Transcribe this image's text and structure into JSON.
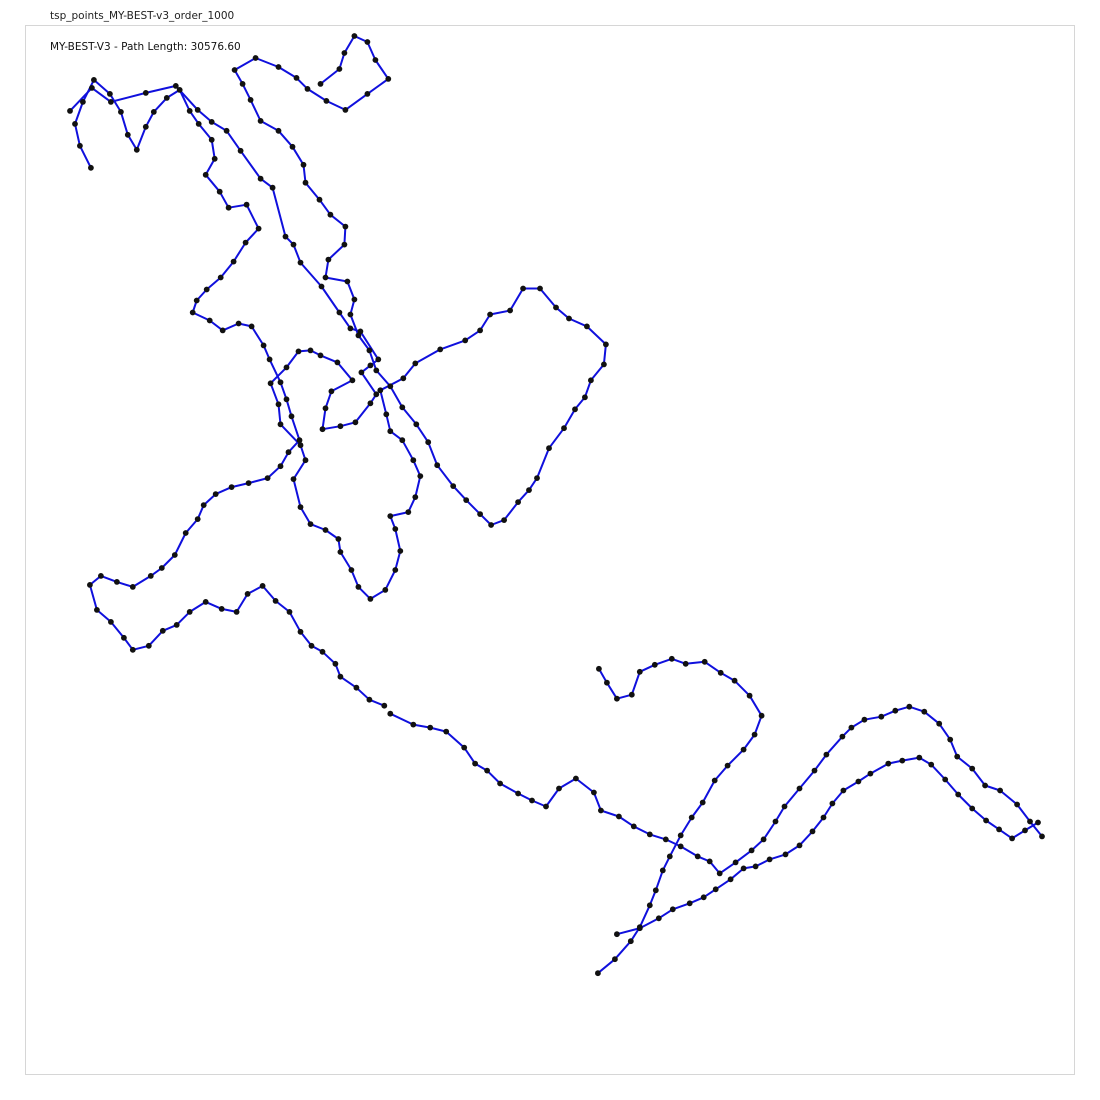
{
  "figure": {
    "title": "tsp_points_MY-BEST-v3_order_1000"
  },
  "chart_data": {
    "type": "line",
    "title": "MY-BEST-V3 - Path Length: 30576.60",
    "xlabel": "",
    "ylabel": "",
    "xlim": [
      0,
      100
    ],
    "ylim": [
      0,
      100
    ],
    "grid": false,
    "legend": "none",
    "colors": {
      "path": "#1010dd",
      "node": "#111111"
    },
    "series": [
      {
        "values": [
          [
            1.9,
            94.0
          ],
          [
            4.1,
            96.3
          ],
          [
            6.0,
            94.9
          ],
          [
            9.5,
            95.8
          ],
          [
            12.5,
            96.5
          ],
          [
            14.7,
            94.1
          ],
          [
            16.1,
            92.9
          ],
          [
            17.6,
            92.0
          ],
          [
            19.0,
            90.0
          ],
          [
            21.0,
            87.2
          ],
          [
            22.2,
            86.3
          ],
          [
            23.5,
            81.4
          ],
          [
            24.3,
            80.6
          ],
          [
            25.0,
            78.8
          ],
          [
            27.1,
            76.4
          ],
          [
            28.9,
            73.8
          ],
          [
            30.0,
            72.2
          ],
          [
            31.0,
            71.9
          ],
          [
            32.8,
            69.1
          ],
          [
            32.0,
            68.5
          ],
          [
            31.1,
            67.8
          ],
          [
            32.6,
            65.6
          ],
          [
            32.0,
            64.7
          ],
          [
            30.5,
            62.8
          ],
          [
            29.0,
            62.4
          ],
          [
            27.2,
            62.1
          ],
          [
            27.5,
            64.2
          ],
          [
            28.1,
            65.9
          ],
          [
            30.2,
            67.0
          ],
          [
            28.7,
            68.8
          ],
          [
            27.0,
            69.5
          ],
          [
            26.0,
            70.0
          ],
          [
            24.8,
            69.9
          ],
          [
            23.6,
            68.3
          ],
          [
            22.0,
            66.7
          ],
          [
            22.8,
            64.6
          ],
          [
            23.0,
            62.6
          ],
          [
            25.0,
            60.5
          ],
          [
            25.5,
            59.0
          ],
          [
            24.3,
            57.1
          ],
          [
            25.0,
            54.3
          ],
          [
            26.0,
            52.6
          ],
          [
            27.5,
            52.0
          ],
          [
            28.8,
            51.1
          ],
          [
            29.0,
            49.8
          ],
          [
            30.1,
            48.0
          ],
          [
            30.8,
            46.3
          ],
          [
            32.0,
            45.1
          ],
          [
            33.5,
            46.0
          ],
          [
            34.5,
            48.0
          ],
          [
            35.0,
            49.9
          ],
          [
            34.5,
            52.1
          ],
          [
            34.0,
            53.4
          ],
          [
            35.8,
            53.8
          ],
          [
            36.5,
            55.3
          ],
          [
            37.0,
            57.4
          ],
          [
            36.3,
            59.0
          ],
          [
            35.2,
            61.0
          ],
          [
            34.0,
            61.9
          ],
          [
            33.6,
            63.6
          ],
          [
            33.0,
            66.0
          ],
          [
            35.3,
            67.2
          ],
          [
            36.5,
            68.7
          ],
          [
            39.0,
            70.1
          ],
          [
            41.5,
            71.0
          ],
          [
            43.0,
            72.0
          ],
          [
            44.0,
            73.6
          ],
          [
            46.0,
            74.0
          ],
          [
            47.3,
            76.2
          ],
          [
            49.0,
            76.2
          ],
          [
            50.6,
            74.3
          ],
          [
            51.9,
            73.2
          ],
          [
            53.7,
            72.4
          ],
          [
            55.6,
            70.6
          ],
          [
            55.4,
            68.6
          ],
          [
            54.1,
            67.0
          ],
          [
            53.5,
            65.3
          ],
          [
            52.5,
            64.1
          ],
          [
            51.4,
            62.2
          ],
          [
            49.9,
            60.2
          ],
          [
            48.7,
            57.2
          ],
          [
            47.9,
            56.0
          ],
          [
            46.8,
            54.8
          ],
          [
            45.4,
            53.0
          ],
          [
            44.1,
            52.5
          ],
          [
            43.0,
            53.6
          ],
          [
            41.6,
            55.0
          ],
          [
            40.3,
            56.4
          ],
          [
            38.7,
            58.5
          ],
          [
            37.8,
            60.8
          ],
          [
            36.6,
            62.6
          ],
          [
            35.2,
            64.3
          ],
          [
            34.0,
            66.4
          ],
          [
            32.6,
            68.0
          ],
          [
            31.9,
            70.0
          ],
          [
            30.8,
            71.5
          ],
          [
            30.0,
            73.6
          ],
          [
            30.4,
            75.1
          ],
          [
            29.7,
            76.9
          ],
          [
            27.5,
            77.3
          ],
          [
            27.8,
            79.1
          ],
          [
            29.4,
            80.6
          ],
          [
            29.5,
            82.4
          ],
          [
            28.0,
            83.6
          ],
          [
            26.9,
            85.1
          ],
          [
            25.5,
            86.8
          ],
          [
            25.3,
            88.6
          ],
          [
            24.2,
            90.4
          ],
          [
            22.8,
            92.0
          ],
          [
            21.0,
            93.0
          ],
          [
            20.0,
            95.1
          ],
          [
            19.2,
            96.7
          ],
          [
            18.4,
            98.1
          ],
          [
            20.5,
            99.3
          ],
          [
            22.8,
            98.4
          ],
          [
            24.6,
            97.3
          ],
          [
            25.7,
            96.2
          ],
          [
            27.6,
            95.0
          ],
          [
            29.5,
            94.1
          ],
          [
            31.7,
            95.7
          ],
          [
            33.8,
            97.2
          ],
          [
            32.5,
            99.1
          ],
          [
            31.7,
            100.9
          ],
          [
            30.4,
            101.5
          ],
          [
            29.4,
            99.8
          ],
          [
            28.9,
            98.2
          ],
          [
            27.0,
            96.7
          ]
        ]
      },
      {
        "values": [
          [
            4.0,
            88.3
          ],
          [
            2.9,
            90.5
          ],
          [
            2.4,
            92.7
          ],
          [
            3.2,
            94.9
          ],
          [
            4.3,
            97.1
          ],
          [
            5.9,
            95.7
          ],
          [
            7.0,
            93.9
          ],
          [
            7.7,
            91.6
          ],
          [
            8.6,
            90.1
          ],
          [
            9.5,
            92.4
          ],
          [
            10.3,
            93.9
          ],
          [
            11.6,
            95.3
          ],
          [
            12.9,
            96.1
          ],
          [
            13.9,
            94.0
          ],
          [
            14.8,
            92.7
          ],
          [
            16.1,
            91.1
          ],
          [
            16.4,
            89.2
          ],
          [
            15.5,
            87.6
          ],
          [
            16.9,
            85.9
          ],
          [
            17.8,
            84.3
          ],
          [
            19.6,
            84.6
          ],
          [
            20.8,
            82.2
          ],
          [
            19.5,
            80.8
          ],
          [
            18.3,
            78.9
          ],
          [
            17.0,
            77.3
          ],
          [
            15.6,
            76.1
          ],
          [
            14.6,
            75.0
          ],
          [
            14.2,
            73.8
          ],
          [
            15.9,
            73.0
          ],
          [
            17.2,
            72.0
          ],
          [
            18.8,
            72.7
          ],
          [
            20.1,
            72.4
          ],
          [
            21.3,
            70.5
          ],
          [
            21.9,
            69.1
          ],
          [
            23.0,
            66.8
          ],
          [
            23.6,
            65.1
          ],
          [
            24.1,
            63.4
          ],
          [
            24.9,
            61.0
          ],
          [
            23.8,
            59.8
          ],
          [
            23.0,
            58.4
          ],
          [
            21.7,
            57.2
          ],
          [
            19.8,
            56.7
          ],
          [
            18.1,
            56.3
          ],
          [
            16.5,
            55.6
          ],
          [
            15.3,
            54.5
          ],
          [
            14.7,
            53.1
          ],
          [
            13.5,
            51.7
          ],
          [
            12.4,
            49.5
          ],
          [
            11.1,
            48.2
          ],
          [
            10.0,
            47.4
          ],
          [
            8.2,
            46.3
          ],
          [
            6.6,
            46.8
          ],
          [
            5.0,
            47.4
          ],
          [
            3.9,
            46.5
          ],
          [
            4.6,
            44.0
          ],
          [
            6.0,
            42.8
          ],
          [
            7.3,
            41.2
          ],
          [
            8.2,
            40.0
          ],
          [
            9.8,
            40.4
          ],
          [
            11.2,
            41.9
          ],
          [
            12.6,
            42.5
          ],
          [
            13.9,
            43.8
          ],
          [
            15.5,
            44.8
          ],
          [
            17.1,
            44.1
          ],
          [
            18.6,
            43.8
          ],
          [
            19.7,
            45.6
          ],
          [
            21.2,
            46.4
          ],
          [
            22.5,
            44.9
          ],
          [
            23.9,
            43.8
          ],
          [
            25.0,
            41.8
          ],
          [
            26.1,
            40.4
          ],
          [
            27.2,
            39.8
          ],
          [
            28.5,
            38.6
          ],
          [
            29.0,
            37.3
          ],
          [
            30.6,
            36.2
          ],
          [
            31.9,
            35.0
          ],
          [
            33.4,
            34.4
          ]
        ]
      },
      {
        "values": [
          [
            34.0,
            33.6
          ],
          [
            36.3,
            32.5
          ],
          [
            38.0,
            32.2
          ],
          [
            39.6,
            31.8
          ],
          [
            41.4,
            30.2
          ],
          [
            42.5,
            28.6
          ],
          [
            43.7,
            27.9
          ],
          [
            45.0,
            26.6
          ],
          [
            46.8,
            25.6
          ],
          [
            48.2,
            24.9
          ],
          [
            49.6,
            24.3
          ],
          [
            50.9,
            26.1
          ],
          [
            52.6,
            27.1
          ],
          [
            54.4,
            25.7
          ],
          [
            55.1,
            23.9
          ],
          [
            56.9,
            23.3
          ],
          [
            58.4,
            22.3
          ],
          [
            60.0,
            21.5
          ],
          [
            61.6,
            21.0
          ],
          [
            63.1,
            20.3
          ],
          [
            64.8,
            19.3
          ],
          [
            66.0,
            18.8
          ],
          [
            67.0,
            17.6
          ],
          [
            68.6,
            18.7
          ],
          [
            70.2,
            19.9
          ],
          [
            71.4,
            21.0
          ],
          [
            72.6,
            22.8
          ],
          [
            73.5,
            24.3
          ],
          [
            75.0,
            26.1
          ],
          [
            76.5,
            27.9
          ],
          [
            77.7,
            29.5
          ],
          [
            79.3,
            31.3
          ],
          [
            80.2,
            32.2
          ],
          [
            81.5,
            33.0
          ],
          [
            83.2,
            33.3
          ],
          [
            84.6,
            33.9
          ],
          [
            86.0,
            34.3
          ],
          [
            87.5,
            33.8
          ],
          [
            89.0,
            32.6
          ],
          [
            90.1,
            31.0
          ],
          [
            90.8,
            29.3
          ],
          [
            92.3,
            28.1
          ],
          [
            93.6,
            26.4
          ],
          [
            95.1,
            25.9
          ],
          [
            96.8,
            24.5
          ],
          [
            98.1,
            22.8
          ],
          [
            99.3,
            21.3
          ]
        ]
      },
      {
        "values": [
          [
            56.7,
            11.5
          ],
          [
            59.0,
            12.1
          ],
          [
            60.9,
            13.1
          ],
          [
            62.3,
            14.0
          ],
          [
            64.0,
            14.6
          ],
          [
            65.4,
            15.2
          ],
          [
            66.6,
            16.0
          ],
          [
            68.1,
            17.0
          ],
          [
            69.4,
            18.1
          ],
          [
            70.6,
            18.3
          ],
          [
            72.0,
            19.0
          ],
          [
            73.6,
            19.5
          ],
          [
            75.0,
            20.4
          ],
          [
            76.3,
            21.8
          ],
          [
            77.4,
            23.2
          ],
          [
            78.3,
            24.6
          ],
          [
            79.4,
            25.9
          ],
          [
            80.9,
            26.8
          ],
          [
            82.1,
            27.6
          ],
          [
            83.9,
            28.6
          ],
          [
            85.3,
            28.9
          ],
          [
            87.0,
            29.2
          ],
          [
            88.2,
            28.5
          ],
          [
            89.6,
            27.0
          ],
          [
            90.9,
            25.5
          ],
          [
            92.3,
            24.1
          ],
          [
            93.7,
            22.9
          ],
          [
            95.0,
            22.0
          ],
          [
            96.3,
            21.1
          ],
          [
            97.6,
            21.9
          ],
          [
            98.9,
            22.7
          ]
        ]
      },
      {
        "values": [
          [
            54.8,
            7.6
          ],
          [
            56.5,
            9.0
          ],
          [
            58.1,
            10.8
          ],
          [
            59.0,
            12.2
          ],
          [
            60.0,
            14.4
          ],
          [
            60.6,
            15.9
          ],
          [
            61.3,
            17.9
          ],
          [
            62.0,
            19.3
          ],
          [
            63.1,
            21.4
          ],
          [
            64.2,
            23.2
          ],
          [
            65.3,
            24.7
          ],
          [
            66.5,
            26.9
          ],
          [
            67.8,
            28.4
          ],
          [
            69.4,
            30.0
          ],
          [
            70.5,
            31.5
          ],
          [
            71.2,
            33.4
          ],
          [
            70.0,
            35.4
          ],
          [
            68.5,
            36.9
          ],
          [
            67.1,
            37.7
          ],
          [
            65.5,
            38.8
          ],
          [
            63.6,
            38.6
          ],
          [
            62.2,
            39.1
          ],
          [
            60.5,
            38.5
          ],
          [
            59.0,
            37.8
          ],
          [
            58.2,
            35.5
          ],
          [
            56.7,
            35.1
          ],
          [
            55.7,
            36.7
          ],
          [
            54.9,
            38.1
          ]
        ]
      }
    ]
  }
}
